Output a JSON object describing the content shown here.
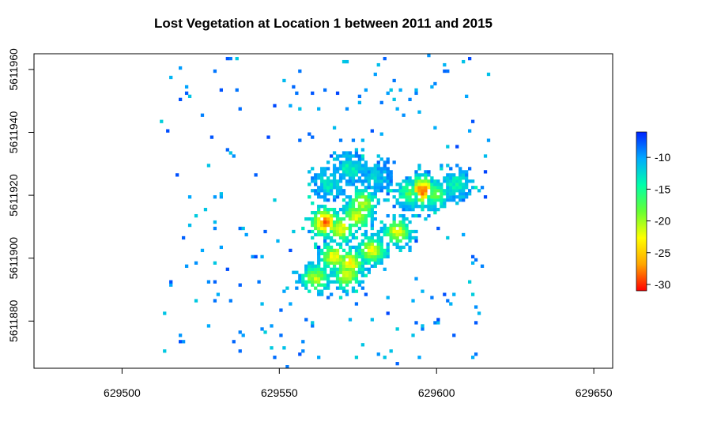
{
  "chart_data": {
    "type": "heatmap",
    "title": "Lost Vegetation at Location 1 between 2011 and 2015",
    "xlabel": "",
    "ylabel": "",
    "xlim": [
      629472,
      629656
    ],
    "ylim": [
      5611865,
      5611965
    ],
    "x_ticks": [
      629500,
      629550,
      629600,
      629650
    ],
    "x_tick_labels": [
      "629500",
      "629550",
      "629600",
      "629650"
    ],
    "y_ticks": [
      5611880,
      5611900,
      5611920,
      5611940,
      5611960
    ],
    "y_tick_labels": [
      "5611880",
      "5611900",
      "5611920",
      "5611940",
      "5611960"
    ],
    "raster_extent": {
      "xmin": 629512,
      "xmax": 629617,
      "ymin": 5611865,
      "ymax": 5611965
    },
    "cell_size": 1,
    "value_range": [
      -31,
      -6
    ],
    "legend": {
      "placement": "right",
      "ticks": [
        -10,
        -15,
        -20,
        -25,
        -30
      ],
      "tick_labels": [
        "-10",
        "-15",
        "-20",
        "-25",
        "-30"
      ],
      "colors": [
        "#ff0000",
        "#ffa500",
        "#ffff00",
        "#66ff33",
        "#00ffaa",
        "#00aaff",
        "#0022ff"
      ]
    },
    "hotspots": [
      {
        "x": 629564,
        "y": 5611911,
        "value": -28
      },
      {
        "x": 629569,
        "y": 5611909,
        "value": -23
      },
      {
        "x": 629574,
        "y": 5611913,
        "value": -22
      },
      {
        "x": 629567,
        "y": 5611900,
        "value": -23
      },
      {
        "x": 629572,
        "y": 5611898,
        "value": -24
      },
      {
        "x": 629579,
        "y": 5611902,
        "value": -23
      },
      {
        "x": 629561,
        "y": 5611893,
        "value": -21
      },
      {
        "x": 629571,
        "y": 5611894,
        "value": -22
      },
      {
        "x": 629576,
        "y": 5611917,
        "value": -21
      },
      {
        "x": 629587,
        "y": 5611908,
        "value": -22
      },
      {
        "x": 629595,
        "y": 5611921,
        "value": -29
      },
      {
        "x": 629591,
        "y": 5611920,
        "value": -17
      },
      {
        "x": 629599,
        "y": 5611920,
        "value": -18
      },
      {
        "x": 629606,
        "y": 5611923,
        "value": -14
      },
      {
        "x": 629572,
        "y": 5611928,
        "value": -14
      },
      {
        "x": 629580,
        "y": 5611925,
        "value": -12
      },
      {
        "x": 629565,
        "y": 5611923,
        "value": -13
      }
    ]
  }
}
